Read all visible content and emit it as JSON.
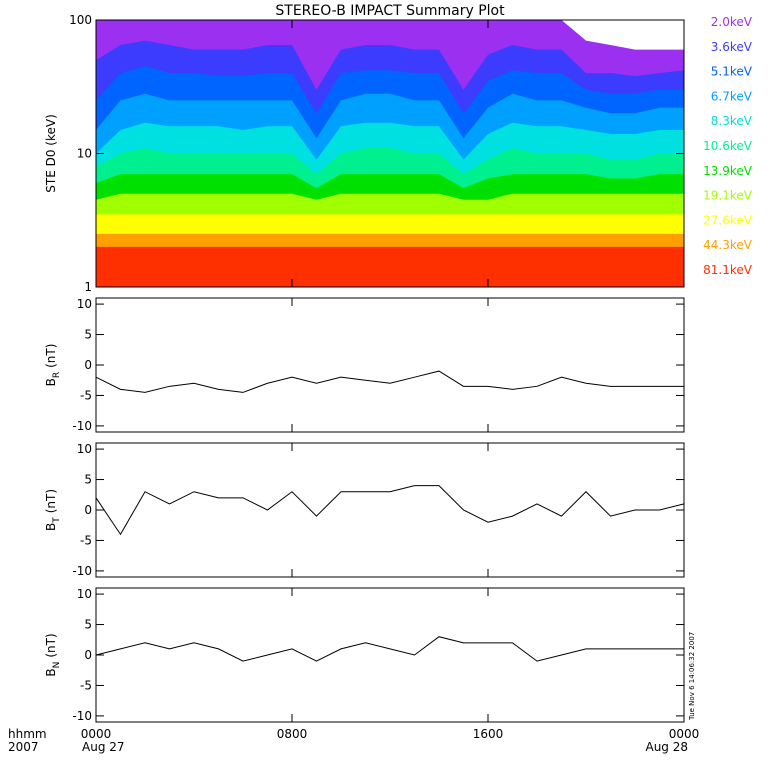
{
  "title": "STEREO-B IMPACT Summary Plot",
  "footnote": "Tue Nov  6 14:06:32 2007",
  "chart_data": [
    {
      "type": "area",
      "ylabel": "STE D0 (keV)",
      "log": true,
      "ylim": [
        1,
        100
      ],
      "yticks": [
        1,
        10,
        100
      ],
      "xlim": [
        0,
        24
      ],
      "x": [
        0,
        1,
        2,
        3,
        4,
        5,
        6,
        7,
        8,
        9,
        10,
        11,
        12,
        13,
        14,
        15,
        16,
        17,
        18,
        19,
        20,
        21,
        22,
        23,
        24
      ],
      "series": [
        {
          "name": "2.0keV",
          "color": "#9b30f0",
          "values": [
            100,
            100,
            100,
            100,
            100,
            100,
            100,
            100,
            100,
            100,
            100,
            100,
            100,
            100,
            100,
            100,
            100,
            100,
            100,
            100,
            70,
            65,
            60,
            60,
            60
          ]
        },
        {
          "name": "3.6keV",
          "color": "#3c3cff",
          "values": [
            50,
            65,
            70,
            65,
            60,
            60,
            60,
            65,
            65,
            30,
            60,
            65,
            65,
            60,
            60,
            30,
            55,
            65,
            60,
            60,
            40,
            40,
            38,
            40,
            42
          ]
        },
        {
          "name": "5.1keV",
          "color": "#0064ff",
          "values": [
            25,
            40,
            45,
            40,
            40,
            38,
            38,
            40,
            40,
            20,
            40,
            42,
            42,
            40,
            40,
            20,
            35,
            42,
            40,
            40,
            30,
            28,
            28,
            30,
            30
          ]
        },
        {
          "name": "6.7keV",
          "color": "#00a0ff",
          "values": [
            15,
            25,
            28,
            25,
            25,
            25,
            25,
            25,
            25,
            13,
            25,
            28,
            28,
            25,
            25,
            13,
            22,
            28,
            25,
            25,
            22,
            20,
            20,
            22,
            22
          ]
        },
        {
          "name": "8.3keV",
          "color": "#00e0e0",
          "values": [
            10,
            15,
            17,
            16,
            16,
            16,
            15,
            16,
            16,
            9,
            16,
            17,
            17,
            16,
            16,
            9,
            14,
            17,
            16,
            16,
            15,
            14,
            14,
            15,
            15
          ]
        },
        {
          "name": "10.6keV",
          "color": "#00f090",
          "values": [
            8,
            10,
            11,
            10,
            10,
            10,
            10,
            10,
            10,
            7,
            10,
            11,
            11,
            10,
            10,
            7,
            9,
            11,
            10,
            10,
            10,
            9,
            9,
            10,
            10
          ]
        },
        {
          "name": "13.9keV",
          "color": "#00e000",
          "values": [
            6,
            7,
            7,
            7,
            7,
            7,
            7,
            7,
            7,
            5.5,
            7,
            7,
            7,
            7,
            7,
            5.5,
            6.5,
            7,
            7,
            7,
            7,
            6.5,
            6.5,
            7,
            7
          ]
        },
        {
          "name": "19.1keV",
          "color": "#a0ff00",
          "values": [
            4.5,
            5,
            5,
            5,
            5,
            5,
            5,
            5,
            5,
            4.5,
            5,
            5,
            5,
            5,
            5,
            4.5,
            4.5,
            5,
            5,
            5,
            5,
            5,
            5,
            5,
            5
          ]
        },
        {
          "name": "27.6keV",
          "color": "#ffff00",
          "values": [
            3.5,
            3.5,
            3.5,
            3.5,
            3.5,
            3.5,
            3.5,
            3.5,
            3.5,
            3.5,
            3.5,
            3.5,
            3.5,
            3.5,
            3.5,
            3.5,
            3.5,
            3.5,
            3.5,
            3.5,
            3.5,
            3.5,
            3.5,
            3.5,
            3.5
          ]
        },
        {
          "name": "44.3keV",
          "color": "#ffa000",
          "values": [
            2.5,
            2.5,
            2.5,
            2.5,
            2.5,
            2.5,
            2.5,
            2.5,
            2.5,
            2.5,
            2.5,
            2.5,
            2.5,
            2.5,
            2.5,
            2.5,
            2.5,
            2.5,
            2.5,
            2.5,
            2.5,
            2.5,
            2.5,
            2.5,
            2.5
          ]
        },
        {
          "name": "81.1keV",
          "color": "#ff3000",
          "values": [
            2,
            2,
            2,
            2,
            2,
            2,
            2,
            2,
            2,
            2,
            2,
            2,
            2,
            2,
            2,
            2,
            2,
            2,
            2,
            2,
            2,
            2,
            2,
            2,
            2
          ]
        }
      ]
    },
    {
      "type": "line",
      "ylabel": "B",
      "ylabel_sub": "R",
      "ylabel_unit": "(nT)",
      "ylim": [
        -11,
        11
      ],
      "yticks": [
        -10,
        -5,
        0,
        5,
        10
      ],
      "xlim": [
        0,
        24
      ],
      "color": "#000000",
      "x": [
        0,
        1,
        2,
        3,
        4,
        5,
        6,
        7,
        8,
        9,
        10,
        11,
        12,
        13,
        14,
        15,
        16,
        17,
        18,
        19,
        20,
        21,
        22,
        23,
        24
      ],
      "values": [
        -2,
        -4,
        -4.5,
        -3.5,
        -3,
        -4,
        -4.5,
        -3,
        -2,
        -3,
        -2,
        -2.5,
        -3,
        -2,
        -1,
        -3.5,
        -3.5,
        -4,
        -3.5,
        -2,
        -3,
        -3.5,
        -3.5,
        -3.5,
        -3.5
      ]
    },
    {
      "type": "line",
      "ylabel": "B",
      "ylabel_sub": "T",
      "ylabel_unit": "(nT)",
      "ylim": [
        -11,
        11
      ],
      "yticks": [
        -10,
        -5,
        0,
        5,
        10
      ],
      "xlim": [
        0,
        24
      ],
      "color": "#000000",
      "x": [
        0,
        1,
        2,
        3,
        4,
        5,
        6,
        7,
        8,
        9,
        10,
        11,
        12,
        13,
        14,
        15,
        16,
        17,
        18,
        19,
        20,
        21,
        22,
        23,
        24
      ],
      "values": [
        2,
        -4,
        3,
        1,
        3,
        2,
        2,
        0,
        3,
        -1,
        3,
        3,
        3,
        4,
        4,
        0,
        -2,
        -1,
        1,
        -1,
        3,
        -1,
        0,
        0,
        1
      ]
    },
    {
      "type": "line",
      "ylabel": "B",
      "ylabel_sub": "N",
      "ylabel_unit": "(nT)",
      "ylim": [
        -11,
        11
      ],
      "yticks": [
        -10,
        -5,
        0,
        5,
        10
      ],
      "xlim": [
        0,
        24
      ],
      "color": "#000000",
      "x": [
        0,
        1,
        2,
        3,
        4,
        5,
        6,
        7,
        8,
        9,
        10,
        11,
        12,
        13,
        14,
        15,
        16,
        17,
        18,
        19,
        20,
        21,
        22,
        23,
        24
      ],
      "values": [
        0,
        1,
        2,
        1,
        2,
        1,
        -1,
        0,
        1,
        -1,
        1,
        2,
        1,
        0,
        3,
        2,
        2,
        2,
        -1,
        0,
        1,
        1,
        1,
        1,
        1
      ],
      "xticks": [
        {
          "value": 0,
          "label": "0000"
        },
        {
          "value": 8,
          "label": "0800"
        },
        {
          "value": 16,
          "label": "1600"
        },
        {
          "value": 24,
          "label": "0000"
        }
      ],
      "xdates": [
        "Aug 27",
        "Aug 28"
      ],
      "xlabel": [
        "hhmm",
        "2007"
      ]
    }
  ]
}
